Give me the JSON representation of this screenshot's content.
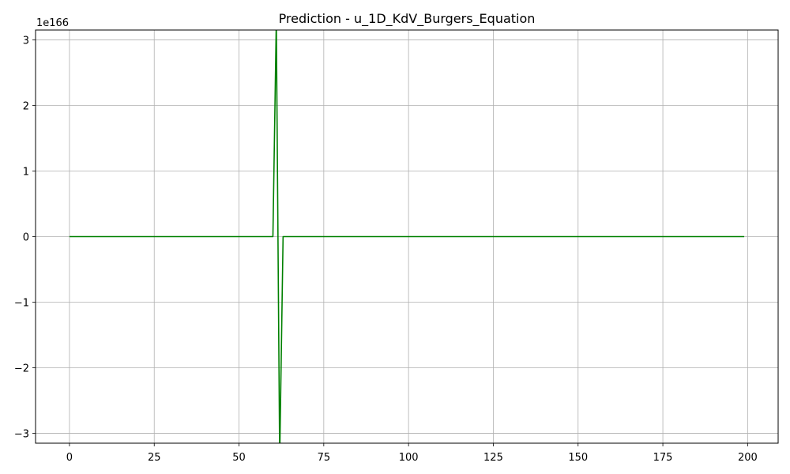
{
  "chart_data": {
    "type": "line",
    "title": "Prediction - u_1D_KdV_Burgers_Equation",
    "xlabel": "",
    "ylabel": "",
    "y_offset_label": "1e166",
    "xlim": [
      -10,
      209
    ],
    "ylim": [
      -3.15,
      3.15
    ],
    "x_ticks": [
      0,
      25,
      50,
      75,
      100,
      125,
      150,
      175,
      200
    ],
    "x_tick_labels": [
      "0",
      "25",
      "50",
      "75",
      "100",
      "125",
      "150",
      "175",
      "200"
    ],
    "y_ticks": [
      -3,
      -2,
      -1,
      0,
      1,
      2,
      3
    ],
    "y_tick_labels": [
      "−3",
      "−2",
      "−1",
      "0",
      "1",
      "2",
      "3"
    ],
    "grid": true,
    "legend": "none",
    "series": [
      {
        "color": "#008000",
        "x": [
          0,
          60,
          61,
          62,
          63,
          199
        ],
        "y": [
          0,
          0,
          3.3,
          -3.4,
          0,
          0
        ]
      }
    ]
  }
}
